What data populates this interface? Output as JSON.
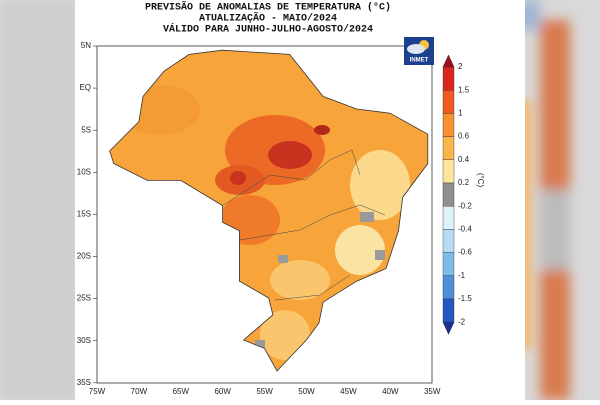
{
  "header": {
    "title_lines": [
      "PREVISÃO DE ANOMALIAS DE TEMPERATURA (°C)",
      "ATUALIZAÇÃO - MAIO/2024",
      "VÁLIDO PARA JUNHO-JULHO-AGOSTO/2024"
    ]
  },
  "map": {
    "lat_labels": [
      "5N",
      "EQ",
      "5S",
      "10S",
      "15S",
      "20S",
      "25S",
      "30S",
      "35S"
    ],
    "lon_labels": [
      "75W",
      "70W",
      "65W",
      "60W",
      "55W",
      "50W",
      "45W",
      "40W",
      "35W"
    ]
  },
  "colorbar": {
    "labels": [
      "2",
      "1.5",
      "1",
      "0.6",
      "0.4",
      "0.2",
      "-0.2",
      "-0.4",
      "-0.6",
      "-1",
      "-1.5",
      "-2"
    ],
    "unit": "(°C)"
  },
  "logo": "INMET"
}
